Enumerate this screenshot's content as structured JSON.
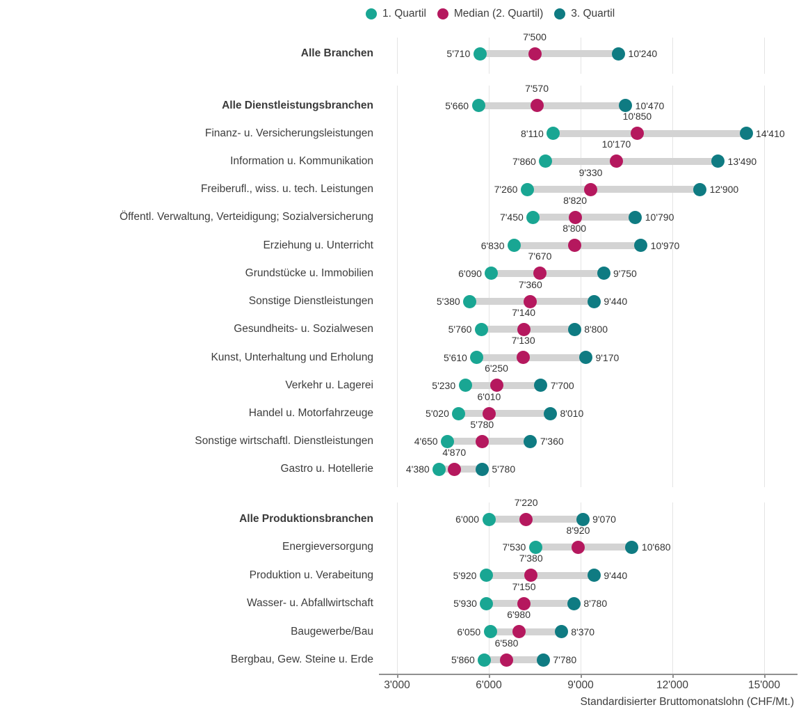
{
  "legend": {
    "items": [
      {
        "id": "q1",
        "label": "1. Quartil",
        "color": "#19a693"
      },
      {
        "id": "median",
        "label": "Median (2. Quartil)",
        "color": "#b5185e"
      },
      {
        "id": "q3",
        "label": "3. Quartil",
        "color": "#0f7b82"
      }
    ]
  },
  "colors": {
    "q1": "#19a693",
    "median": "#b5185e",
    "q3": "#0f7b82",
    "range_bar": "#d3d3d3",
    "gridline": "#e4e4e4",
    "axis": "#8f8f8f",
    "text": "#3d3d3d"
  },
  "chart_data": {
    "type": "dumbbell",
    "orientation": "horizontal",
    "x_axis": {
      "title": "Standardisierter Bruttomonatslohn (CHF/Mt.)",
      "ticks": [
        3000,
        6000,
        9000,
        12000,
        15000
      ],
      "tick_labels": [
        "3'000",
        "6'000",
        "9'000",
        "12'000",
        "15'000"
      ],
      "range_shown": [
        3000,
        15000
      ],
      "grid": true,
      "thousands_separator": "'"
    },
    "legend_position": "top",
    "series_names": [
      "1. Quartil",
      "Median (2. Quartil)",
      "3. Quartil"
    ],
    "groups": [
      {
        "rows": [
          {
            "label": "Alle Branchen",
            "bold": true,
            "q1": 5710,
            "median": 7500,
            "q3": 10240
          }
        ]
      },
      {
        "rows": [
          {
            "label": "Alle Dienstleistungsbranchen",
            "bold": true,
            "q1": 5660,
            "median": 7570,
            "q3": 10470
          },
          {
            "label": "Finanz- u. Versicherungsleistungen",
            "bold": false,
            "q1": 8110,
            "median": 10850,
            "q3": 14410
          },
          {
            "label": "Information u. Kommunikation",
            "bold": false,
            "q1": 7860,
            "median": 10170,
            "q3": 13490
          },
          {
            "label": "Freiberufl., wiss. u. tech. Leistungen",
            "bold": false,
            "q1": 7260,
            "median": 9330,
            "q3": 12900
          },
          {
            "label": "Öffentl. Verwaltung, Verteidigung; Sozialversicherung",
            "bold": false,
            "q1": 7450,
            "median": 8820,
            "q3": 10790
          },
          {
            "label": "Erziehung u. Unterricht",
            "bold": false,
            "q1": 6830,
            "median": 8800,
            "q3": 10970
          },
          {
            "label": "Grundstücke u. Immobilien",
            "bold": false,
            "q1": 6090,
            "median": 7670,
            "q3": 9750
          },
          {
            "label": "Sonstige Dienstleistungen",
            "bold": false,
            "q1": 5380,
            "median": 7360,
            "q3": 9440
          },
          {
            "label": "Gesundheits- u. Sozialwesen",
            "bold": false,
            "q1": 5760,
            "median": 7140,
            "q3": 8800
          },
          {
            "label": "Kunst, Unterhaltung und Erholung",
            "bold": false,
            "q1": 5610,
            "median": 7130,
            "q3": 9170
          },
          {
            "label": "Verkehr u. Lagerei",
            "bold": false,
            "q1": 5230,
            "median": 6250,
            "q3": 7700
          },
          {
            "label": "Handel u. Motorfahrzeuge",
            "bold": false,
            "q1": 5020,
            "median": 6010,
            "q3": 8010
          },
          {
            "label": "Sonstige wirtschaftl. Dienstleistungen",
            "bold": false,
            "q1": 4650,
            "median": 5780,
            "q3": 7360
          },
          {
            "label": "Gastro u. Hotellerie",
            "bold": false,
            "q1": 4380,
            "median": 4870,
            "q3": 5780
          }
        ]
      },
      {
        "rows": [
          {
            "label": "Alle Produktionsbranchen",
            "bold": true,
            "q1": 6000,
            "median": 7220,
            "q3": 9070
          },
          {
            "label": "Energieversorgung",
            "bold": false,
            "q1": 7530,
            "median": 8920,
            "q3": 10680
          },
          {
            "label": "Produktion u. Verabeitung",
            "bold": false,
            "q1": 5920,
            "median": 7380,
            "q3": 9440
          },
          {
            "label": "Wasser- u. Abfallwirtschaft",
            "bold": false,
            "q1": 5930,
            "median": 7150,
            "q3": 8780
          },
          {
            "label": "Baugewerbe/Bau",
            "bold": false,
            "q1": 6050,
            "median": 6980,
            "q3": 8370
          },
          {
            "label": "Bergbau, Gew. Steine u. Erde",
            "bold": false,
            "q1": 5860,
            "median": 6580,
            "q3": 7780
          }
        ]
      }
    ]
  }
}
